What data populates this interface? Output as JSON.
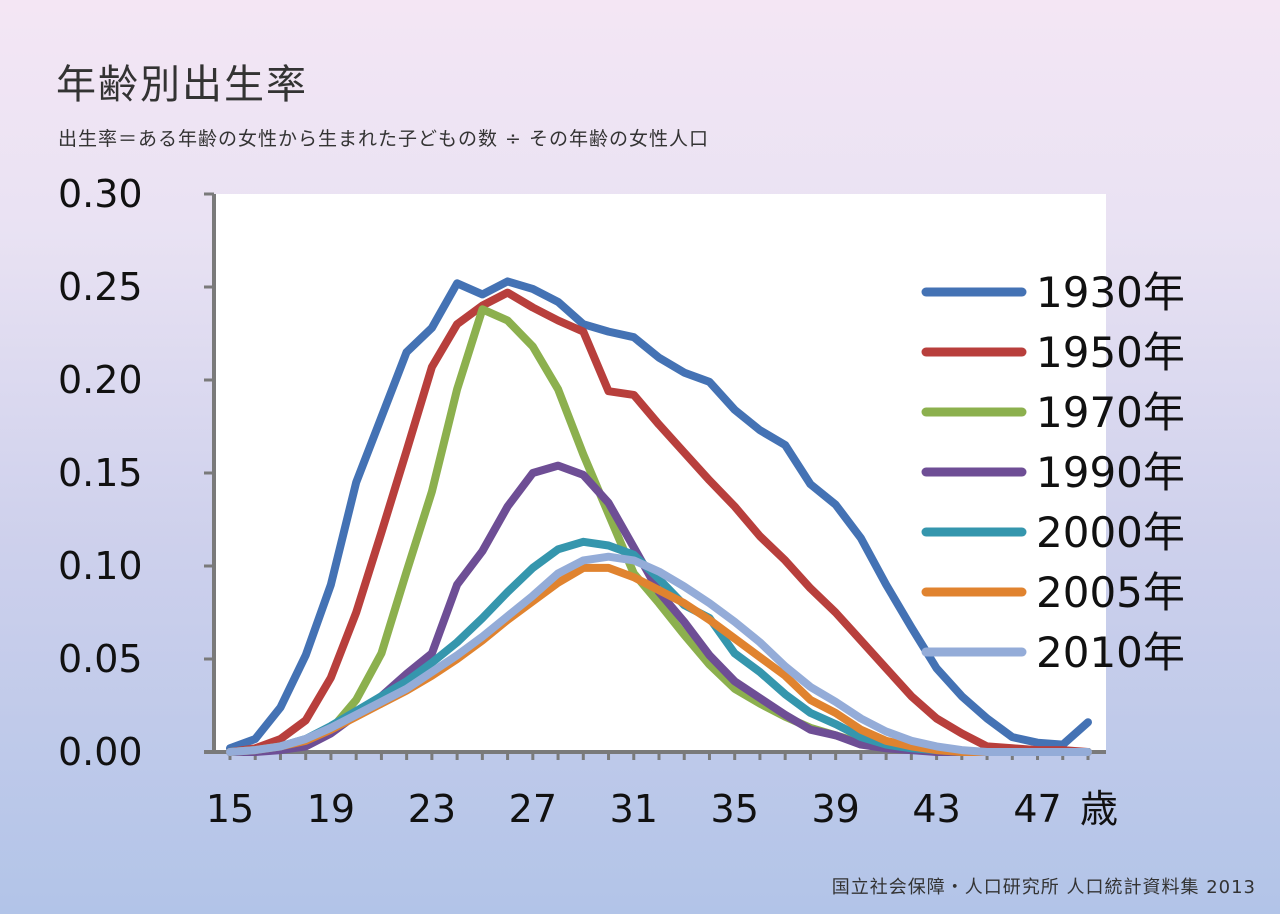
{
  "title": "年齢別出生率",
  "subtitle": "出生率＝ある年齢の女性から生まれた子どもの数 ÷ その年齢の女性人口",
  "source": "国立社会保障・人口研究所 人口統計資料集 2013",
  "chart_data": {
    "type": "line",
    "title": "年齢別出生率",
    "xlabel": "歳",
    "ylabel": "",
    "xlim": [
      15,
      49
    ],
    "ylim": [
      0,
      0.3
    ],
    "x_ticks": [
      15,
      19,
      23,
      27,
      31,
      35,
      39,
      43,
      47
    ],
    "x_tick_labels": [
      "15",
      "19",
      "23",
      "27",
      "31",
      "35",
      "39",
      "43",
      "47"
    ],
    "x_unit_label": "歳",
    "y_ticks": [
      0,
      0.05,
      0.1,
      0.15,
      0.2,
      0.25,
      0.3
    ],
    "y_tick_labels": [
      "0.00",
      "0.05",
      "0.10",
      "0.15",
      "0.20",
      "0.25",
      "0.30"
    ],
    "grid": false,
    "legend_position": "right",
    "x": [
      15,
      16,
      17,
      18,
      19,
      20,
      21,
      22,
      23,
      24,
      25,
      26,
      27,
      28,
      29,
      30,
      31,
      32,
      33,
      34,
      35,
      36,
      37,
      38,
      39,
      40,
      41,
      42,
      43,
      44,
      45,
      46,
      47,
      48,
      49
    ],
    "series": [
      {
        "name": "1930年",
        "color": "#4472b4",
        "values": [
          0.002,
          0.007,
          0.024,
          0.052,
          0.09,
          0.145,
          0.18,
          0.215,
          0.228,
          0.252,
          0.246,
          0.253,
          0.249,
          0.242,
          0.23,
          0.226,
          0.223,
          0.212,
          0.204,
          0.199,
          0.184,
          0.173,
          0.165,
          0.144,
          0.133,
          0.115,
          0.09,
          0.067,
          0.045,
          0.03,
          0.018,
          0.008,
          0.005,
          0.004,
          0.016
        ]
      },
      {
        "name": "1950年",
        "color": "#b83f3c",
        "values": [
          0.0,
          0.002,
          0.007,
          0.017,
          0.04,
          0.075,
          0.118,
          0.162,
          0.207,
          0.23,
          0.24,
          0.247,
          0.239,
          0.232,
          0.226,
          0.194,
          0.192,
          0.176,
          0.161,
          0.146,
          0.132,
          0.116,
          0.103,
          0.088,
          0.075,
          0.06,
          0.045,
          0.03,
          0.018,
          0.01,
          0.003,
          0.002,
          0.001,
          0.001,
          0.0
        ]
      },
      {
        "name": "1970年",
        "color": "#8cb04e",
        "values": [
          0.0,
          0.001,
          0.003,
          0.006,
          0.012,
          0.028,
          0.053,
          0.097,
          0.14,
          0.195,
          0.238,
          0.232,
          0.218,
          0.195,
          0.16,
          0.128,
          0.096,
          0.08,
          0.063,
          0.047,
          0.034,
          0.026,
          0.019,
          0.013,
          0.009,
          0.005,
          0.003,
          0.002,
          0.001,
          0.0,
          0.0,
          0.0,
          0.0,
          0.0,
          0.0
        ]
      },
      {
        "name": "1990年",
        "color": "#6e4e95",
        "values": [
          0.0,
          0.0,
          0.001,
          0.003,
          0.01,
          0.02,
          0.03,
          0.042,
          0.053,
          0.09,
          0.108,
          0.132,
          0.15,
          0.154,
          0.149,
          0.134,
          0.11,
          0.086,
          0.07,
          0.052,
          0.038,
          0.029,
          0.02,
          0.012,
          0.009,
          0.004,
          0.002,
          0.001,
          0.0,
          0.0,
          0.0,
          0.0,
          0.0,
          0.0,
          0.0
        ]
      },
      {
        "name": "2000年",
        "color": "#3596ad",
        "values": [
          0.0,
          0.001,
          0.003,
          0.007,
          0.014,
          0.022,
          0.03,
          0.038,
          0.048,
          0.059,
          0.072,
          0.086,
          0.099,
          0.109,
          0.113,
          0.111,
          0.106,
          0.093,
          0.079,
          0.072,
          0.053,
          0.043,
          0.031,
          0.021,
          0.015,
          0.008,
          0.004,
          0.002,
          0.001,
          0.0,
          0.0,
          0.0,
          0.0,
          0.0,
          0.0
        ]
      },
      {
        "name": "2005年",
        "color": "#e0832f",
        "values": [
          0.0,
          0.001,
          0.003,
          0.006,
          0.012,
          0.019,
          0.026,
          0.033,
          0.041,
          0.05,
          0.06,
          0.071,
          0.081,
          0.091,
          0.099,
          0.099,
          0.094,
          0.087,
          0.08,
          0.071,
          0.061,
          0.051,
          0.041,
          0.028,
          0.021,
          0.012,
          0.006,
          0.003,
          0.001,
          0.0,
          0.0,
          0.0,
          0.0,
          0.0,
          0.0
        ]
      },
      {
        "name": "2010年",
        "color": "#94acd8",
        "values": [
          0.0,
          0.001,
          0.003,
          0.007,
          0.013,
          0.02,
          0.027,
          0.034,
          0.043,
          0.052,
          0.062,
          0.073,
          0.084,
          0.096,
          0.103,
          0.105,
          0.103,
          0.097,
          0.089,
          0.08,
          0.07,
          0.059,
          0.046,
          0.035,
          0.027,
          0.018,
          0.011,
          0.006,
          0.003,
          0.001,
          0.0,
          0.0,
          0.0,
          0.0,
          0.0
        ]
      }
    ]
  }
}
